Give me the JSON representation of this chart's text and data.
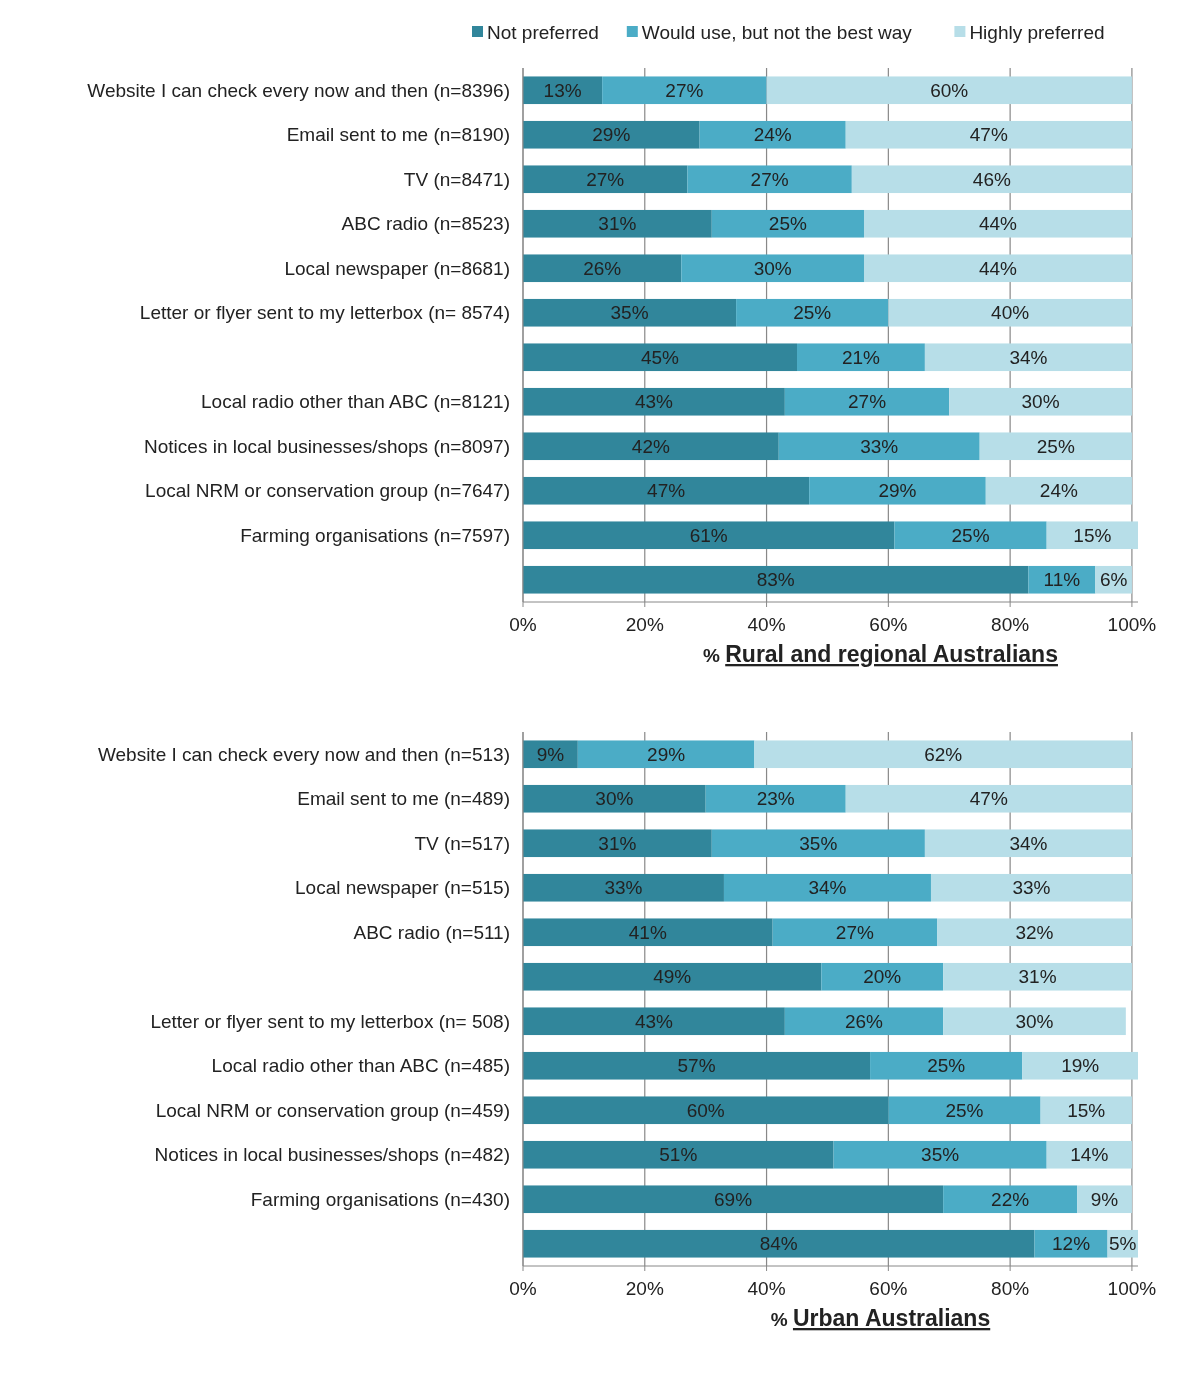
{
  "chart_data": [
    {
      "type": "bar",
      "orientation": "horizontal",
      "stacked": true,
      "legend": "top",
      "grid": "x",
      "xlabel": "% Rural and regional Australians",
      "categories": [
        "Website I can check every now and then (n=8396)",
        "Email sent to me (n=8190)",
        "TV (n=8471)",
        "ABC radio (n=8523)",
        "Local newspaper (n=8681)",
        "Letter or flyer sent to my letterbox (n= 8574)",
        null,
        "Local radio other than ABC (n=8121)",
        "Notices in local businesses/shops (n=8097)",
        "Local NRM or conservation group (n=7647)",
        "Farming organisations (n=7597)",
        null
      ],
      "xlim": [
        0,
        101
      ],
      "xticks": [
        {
          "value": 0,
          "label": "0%"
        },
        {
          "value": 20,
          "label": "20%"
        },
        {
          "value": 40,
          "label": "40%"
        },
        {
          "value": 60,
          "label": "60%"
        },
        {
          "value": 80,
          "label": "80%"
        },
        {
          "value": 100,
          "label": "100%"
        }
      ],
      "series": [
        {
          "name": "Not preferred",
          "color": "#31869b",
          "values": [
            13,
            29,
            27,
            31,
            26,
            35,
            45,
            43,
            42,
            47,
            61,
            83
          ],
          "value_labels": [
            "13%",
            "29%",
            "27%",
            "31%",
            "26%",
            "35%",
            "45%",
            "43%",
            "42%",
            "47%",
            "61%",
            "83%"
          ]
        },
        {
          "name": "Would use, but not the best way",
          "color": "#4bacc6",
          "values": [
            27,
            24,
            27,
            25,
            30,
            25,
            21,
            27,
            33,
            29,
            25,
            11
          ],
          "value_labels": [
            "27%",
            "24%",
            "27%",
            "25%",
            "30%",
            "25%",
            "21%",
            "27%",
            "33%",
            "29%",
            "25%",
            "11%"
          ]
        },
        {
          "name": "Highly preferred",
          "color": "#b7dee8",
          "values": [
            60,
            47,
            46,
            44,
            44,
            40,
            34,
            30,
            25,
            24,
            15,
            6
          ],
          "value_labels": [
            "60%",
            "47%",
            "46%",
            "44%",
            "44%",
            "40%",
            "34%",
            "30%",
            "25%",
            "24%",
            "15%",
            "6%"
          ]
        }
      ]
    },
    {
      "type": "bar",
      "orientation": "horizontal",
      "stacked": true,
      "grid": "x",
      "xlabel": "% Urban Australians",
      "categories": [
        "Website I can check every now and then (n=513)",
        "Email sent to me (n=489)",
        "TV (n=517)",
        "Local newspaper (n=515)",
        "ABC radio (n=511)",
        null,
        "Letter or flyer sent to my letterbox (n= 508)",
        "Local radio other than ABC (n=485)",
        "Local NRM or conservation group (n=459)",
        "Notices in local businesses/shops (n=482)",
        "Farming organisations (n=430)",
        null
      ],
      "xlim": [
        0,
        101
      ],
      "xticks": [
        {
          "value": 0,
          "label": "0%"
        },
        {
          "value": 20,
          "label": "20%"
        },
        {
          "value": 40,
          "label": "40%"
        },
        {
          "value": 60,
          "label": "60%"
        },
        {
          "value": 80,
          "label": "80%"
        },
        {
          "value": 100,
          "label": "100%"
        }
      ],
      "series": [
        {
          "color": "#31869b",
          "values": [
            9,
            30,
            31,
            33,
            41,
            49,
            43,
            57,
            60,
            51,
            69,
            84
          ],
          "value_labels": [
            "9%",
            "30%",
            "31%",
            "33%",
            "41%",
            "49%",
            "43%",
            "57%",
            "60%",
            "51%",
            "69%",
            "84%"
          ]
        },
        {
          "color": "#4bacc6",
          "values": [
            29,
            23,
            35,
            34,
            27,
            20,
            26,
            25,
            25,
            35,
            22,
            12
          ],
          "value_labels": [
            "29%",
            "23%",
            "35%",
            "34%",
            "27%",
            "20%",
            "26%",
            "25%",
            "25%",
            "35%",
            "22%",
            "12%"
          ]
        },
        {
          "color": "#b7dee8",
          "values": [
            62,
            47,
            34,
            33,
            32,
            31,
            30,
            19,
            15,
            14,
            9,
            5
          ],
          "value_labels": [
            "62%",
            "47%",
            "34%",
            "33%",
            "32%",
            "31%",
            "30%",
            "19%",
            "15%",
            "14%",
            "9%",
            "5%"
          ]
        }
      ]
    }
  ]
}
